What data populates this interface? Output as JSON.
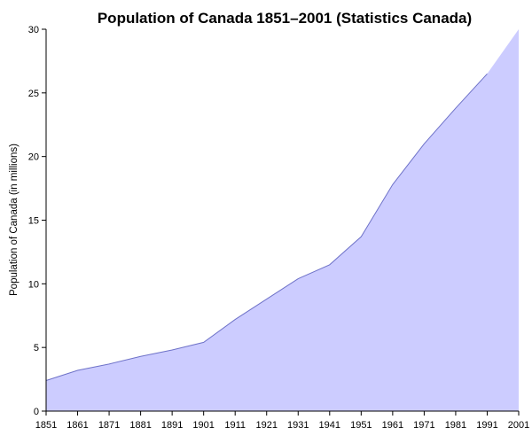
{
  "chart_data": {
    "type": "area",
    "title": "Population of Canada 1851–2001 (Statistics Canada)",
    "xlabel": "",
    "ylabel": "Population of Canada (in millions)",
    "x": [
      1851,
      1861,
      1871,
      1881,
      1891,
      1901,
      1911,
      1921,
      1931,
      1941,
      1951,
      1961,
      1971,
      1981,
      1991,
      2001
    ],
    "categories": [
      "1851",
      "1861",
      "1871",
      "1881",
      "1891",
      "1901",
      "1911",
      "1921",
      "1931",
      "1941",
      "1951",
      "1961",
      "1971",
      "1981",
      "1991",
      "2001"
    ],
    "series": [
      {
        "values": [
          2.4,
          3.2,
          3.7,
          4.3,
          4.8,
          5.4,
          7.2,
          8.8,
          10.4,
          11.5,
          13.7,
          17.8,
          21.0,
          23.8,
          26.5,
          30.0
        ]
      }
    ],
    "ylim": [
      0,
      30
    ],
    "yticks": [
      0,
      5,
      10,
      15,
      20,
      25,
      30
    ],
    "grid": false,
    "legend": "none",
    "colors": {
      "fill": "#ccccff",
      "line": "#6e72c8",
      "axis": "#000000"
    }
  }
}
